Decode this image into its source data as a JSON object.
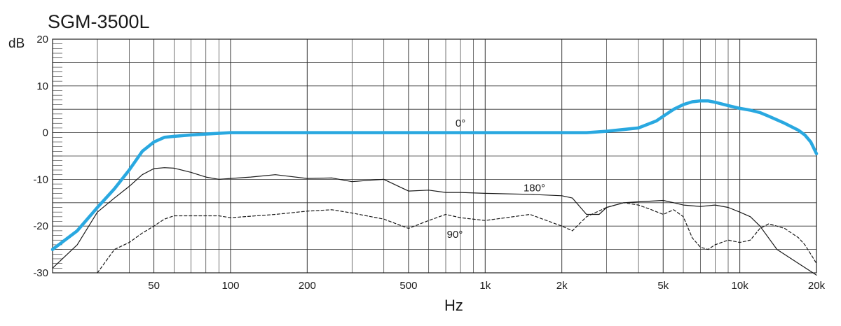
{
  "chart_data": {
    "type": "line",
    "title": "SGM-3500L",
    "ylabel": "dB",
    "xlabel": "Hz",
    "x_scale": "log",
    "xlim": [
      20,
      20000
    ],
    "ylim": [
      -30,
      20
    ],
    "grid": true,
    "y_ticks": [
      {
        "value": 20,
        "label": "20"
      },
      {
        "value": 10,
        "label": "10"
      },
      {
        "value": 0,
        "label": "0"
      },
      {
        "value": -10,
        "label": "-10"
      },
      {
        "value": -20,
        "label": "-20"
      },
      {
        "value": -30,
        "label": "-30"
      }
    ],
    "x_ticks": [
      {
        "value": 50,
        "label": "50"
      },
      {
        "value": 100,
        "label": "100"
      },
      {
        "value": 200,
        "label": "200"
      },
      {
        "value": 500,
        "label": "500"
      },
      {
        "value": 1000,
        "label": "1k"
      },
      {
        "value": 2000,
        "label": "2k"
      },
      {
        "value": 5000,
        "label": "5k"
      },
      {
        "value": 10000,
        "label": "10k"
      },
      {
        "value": 20000,
        "label": "20k"
      }
    ],
    "series": [
      {
        "name": "0°",
        "label_at": [
          800,
          2
        ],
        "color": "#29a8e0",
        "style": "solid-thick",
        "points": [
          [
            20,
            -25
          ],
          [
            25,
            -21
          ],
          [
            30,
            -16
          ],
          [
            35,
            -12
          ],
          [
            40,
            -8
          ],
          [
            45,
            -4
          ],
          [
            50,
            -2
          ],
          [
            55,
            -1
          ],
          [
            60,
            -0.8
          ],
          [
            70,
            -0.5
          ],
          [
            80,
            -0.3
          ],
          [
            100,
            0
          ],
          [
            200,
            0
          ],
          [
            500,
            0
          ],
          [
            1000,
            0
          ],
          [
            2000,
            0
          ],
          [
            2500,
            0
          ],
          [
            3000,
            0.3
          ],
          [
            4000,
            1
          ],
          [
            4700,
            2.5
          ],
          [
            5000,
            3.5
          ],
          [
            5500,
            5
          ],
          [
            6000,
            6
          ],
          [
            6500,
            6.6
          ],
          [
            7000,
            6.8
          ],
          [
            7500,
            6.8
          ],
          [
            8000,
            6.5
          ],
          [
            9000,
            5.8
          ],
          [
            10000,
            5.2
          ],
          [
            11000,
            4.8
          ],
          [
            12000,
            4.3
          ],
          [
            13000,
            3.5
          ],
          [
            15000,
            2
          ],
          [
            17000,
            0.5
          ],
          [
            18000,
            -0.5
          ],
          [
            19000,
            -2
          ],
          [
            20000,
            -4.5
          ]
        ]
      },
      {
        "name": "180°",
        "label_at": [
          1560,
          -11.8
        ],
        "color": "#1a1a1a",
        "style": "solid-thin",
        "points": [
          [
            20,
            -29
          ],
          [
            25,
            -24
          ],
          [
            30,
            -17
          ],
          [
            35,
            -14
          ],
          [
            40,
            -11.5
          ],
          [
            45,
            -9
          ],
          [
            50,
            -7.7
          ],
          [
            55,
            -7.5
          ],
          [
            60,
            -7.6
          ],
          [
            70,
            -8.5
          ],
          [
            80,
            -9.5
          ],
          [
            90,
            -10
          ],
          [
            100,
            -9.8
          ],
          [
            120,
            -9.5
          ],
          [
            150,
            -9
          ],
          [
            200,
            -9.8
          ],
          [
            250,
            -9.7
          ],
          [
            300,
            -10.5
          ],
          [
            350,
            -10.2
          ],
          [
            400,
            -10
          ],
          [
            500,
            -12.5
          ],
          [
            600,
            -12.3
          ],
          [
            700,
            -12.8
          ],
          [
            800,
            -12.8
          ],
          [
            1000,
            -13
          ],
          [
            1500,
            -13.2
          ],
          [
            2000,
            -13.5
          ],
          [
            2200,
            -14
          ],
          [
            2500,
            -17.5
          ],
          [
            2800,
            -17.5
          ],
          [
            3000,
            -16
          ],
          [
            3500,
            -15
          ],
          [
            4000,
            -14.8
          ],
          [
            5000,
            -14.5
          ],
          [
            5500,
            -15
          ],
          [
            6000,
            -15.5
          ],
          [
            7000,
            -15.8
          ],
          [
            8000,
            -15.5
          ],
          [
            9000,
            -16
          ],
          [
            10000,
            -17
          ],
          [
            11000,
            -18
          ],
          [
            12000,
            -20
          ],
          [
            14000,
            -25
          ],
          [
            17000,
            -28
          ],
          [
            20000,
            -30.5
          ]
        ]
      },
      {
        "name": "90°",
        "label_at": [
          760,
          -21.8
        ],
        "color": "#1a1a1a",
        "style": "dashed-thin",
        "points": [
          [
            30,
            -30
          ],
          [
            35,
            -25
          ],
          [
            40,
            -23.5
          ],
          [
            45,
            -21.5
          ],
          [
            50,
            -20
          ],
          [
            55,
            -18.5
          ],
          [
            60,
            -17.8
          ],
          [
            70,
            -17.8
          ],
          [
            90,
            -17.8
          ],
          [
            100,
            -18.2
          ],
          [
            150,
            -17.5
          ],
          [
            200,
            -16.8
          ],
          [
            250,
            -16.5
          ],
          [
            300,
            -17.2
          ],
          [
            400,
            -18.5
          ],
          [
            500,
            -20.5
          ],
          [
            600,
            -18.8
          ],
          [
            700,
            -17.5
          ],
          [
            800,
            -18.2
          ],
          [
            1000,
            -18.8
          ],
          [
            1500,
            -17.5
          ],
          [
            2000,
            -20
          ],
          [
            2200,
            -21
          ],
          [
            2500,
            -18
          ],
          [
            3000,
            -16
          ],
          [
            3500,
            -15
          ],
          [
            4000,
            -15.5
          ],
          [
            4500,
            -16.5
          ],
          [
            5000,
            -17.5
          ],
          [
            5500,
            -16.5
          ],
          [
            6000,
            -18
          ],
          [
            6500,
            -22.5
          ],
          [
            7000,
            -24.5
          ],
          [
            7500,
            -25
          ],
          [
            8000,
            -24
          ],
          [
            9000,
            -23
          ],
          [
            10000,
            -23.5
          ],
          [
            11000,
            -23
          ],
          [
            12000,
            -20.5
          ],
          [
            13000,
            -19.5
          ],
          [
            15000,
            -20.5
          ],
          [
            17000,
            -22.5
          ],
          [
            18000,
            -24
          ],
          [
            19000,
            -26
          ],
          [
            20000,
            -28
          ]
        ]
      }
    ]
  }
}
